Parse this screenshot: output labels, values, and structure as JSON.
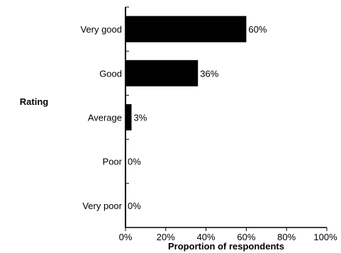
{
  "chart_data": {
    "type": "bar",
    "orientation": "horizontal",
    "categories": [
      "Very good",
      "Good",
      "Average",
      "Poor",
      "Very poor"
    ],
    "values": [
      60,
      36,
      3,
      0,
      0
    ],
    "data_labels": [
      "60%",
      "36%",
      "3%",
      "0%",
      "0%"
    ],
    "xlabel": "Proportion of respondents",
    "ylabel": "Rating",
    "xlim": [
      0,
      100
    ],
    "x_ticks": [
      0,
      20,
      40,
      60,
      80,
      100
    ],
    "x_tick_labels": [
      "0%",
      "20%",
      "40%",
      "60%",
      "80%",
      "100%"
    ],
    "grid": false,
    "bar_color": "#000000"
  }
}
